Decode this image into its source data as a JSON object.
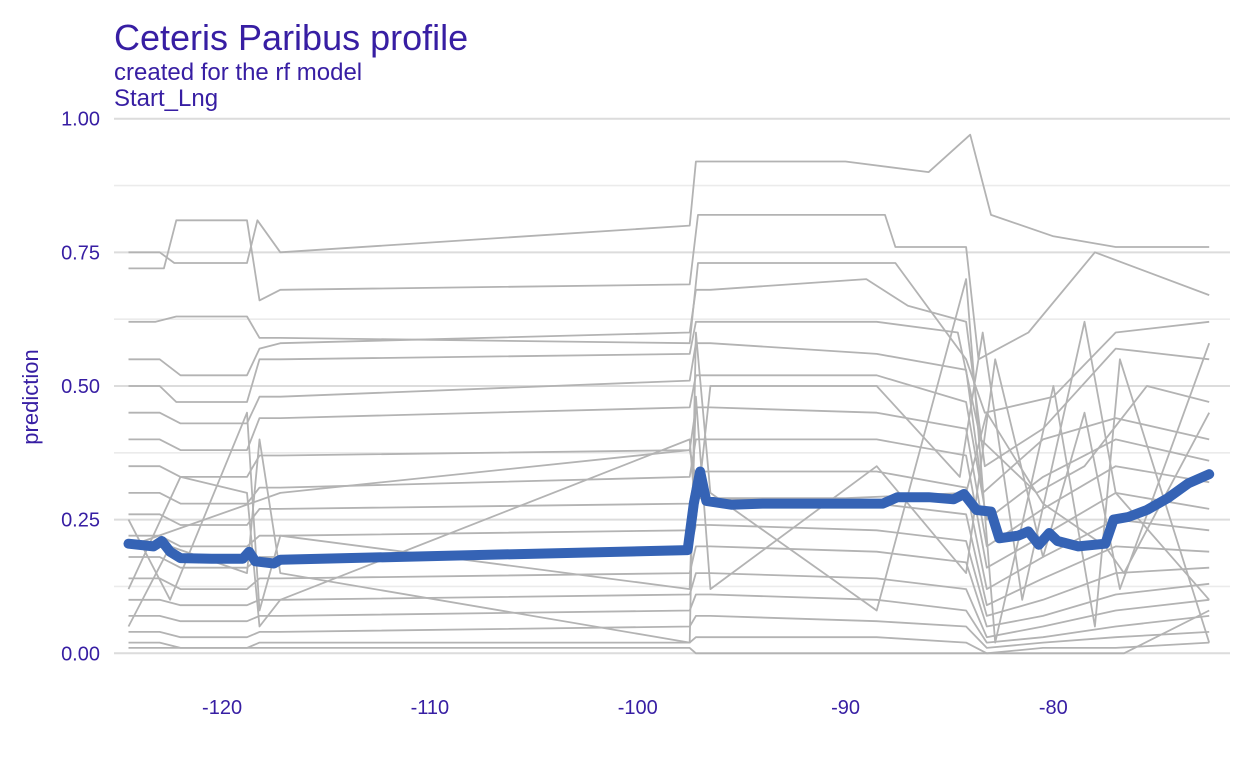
{
  "chart_data": {
    "type": "line",
    "title": "Ceteris Paribus profile",
    "subtitle": "created for the rf model",
    "facet_label": "Start_Lng",
    "xlabel": "",
    "ylabel": "prediction",
    "xlim": [
      -125.2,
      -71.5
    ],
    "ylim": [
      -0.05,
      1.02
    ],
    "x_ticks": [
      -120,
      -110,
      -100,
      -90,
      -80
    ],
    "y_ticks": [
      0.0,
      0.25,
      0.5,
      0.75,
      1.0
    ],
    "y_tick_labels": [
      "0.00",
      "0.25",
      "0.50",
      "0.75",
      "1.00"
    ],
    "grid": true,
    "legend": "none",
    "colors": {
      "profiles": "#b3b3b3",
      "average": "#3563b5",
      "text": "#371ea3"
    },
    "series": [
      {
        "x": [
          -124.5,
          -123,
          -122.3,
          -121,
          -118.8,
          -118.3,
          -117.2,
          -97.5,
          -97.2,
          -96.5,
          -90,
          -86,
          -84,
          -83,
          -80,
          -77,
          -72.5
        ],
        "values": [
          0.75,
          0.75,
          0.73,
          0.73,
          0.73,
          0.81,
          0.75,
          0.8,
          0.92,
          0.92,
          0.92,
          0.9,
          0.97,
          0.82,
          0.78,
          0.76,
          0.76
        ]
      },
      {
        "x": [
          -124.5,
          -122.8,
          -122.2,
          -120,
          -118.8,
          -118.2,
          -117.2,
          -97.5,
          -97.1,
          -96.5,
          -88.1,
          -87.6,
          -84.2,
          -83.6,
          -81.2,
          -78,
          -72.5
        ],
        "values": [
          0.72,
          0.72,
          0.81,
          0.81,
          0.81,
          0.66,
          0.68,
          0.69,
          0.82,
          0.82,
          0.82,
          0.76,
          0.76,
          0.55,
          0.6,
          0.75,
          0.67
        ]
      },
      {
        "x": [
          -124.5,
          -123.2,
          -122.2,
          -118.8,
          -118.2,
          -117.2,
          -97.5,
          -97.1,
          -96.3,
          -88.5,
          -87.6,
          -84.2,
          -83.3,
          -80,
          -77,
          -72.5
        ],
        "values": [
          0.62,
          0.62,
          0.63,
          0.63,
          0.59,
          0.59,
          0.58,
          0.73,
          0.73,
          0.73,
          0.73,
          0.55,
          0.45,
          0.48,
          0.6,
          0.62
        ]
      },
      {
        "x": [
          -124.5,
          -123,
          -122,
          -118.8,
          -118.2,
          -117.2,
          -97.5,
          -97.2,
          -96.5,
          -89,
          -87,
          -84.2,
          -83.3,
          -80.5,
          -77,
          -72.5
        ],
        "values": [
          0.55,
          0.55,
          0.52,
          0.52,
          0.57,
          0.58,
          0.6,
          0.68,
          0.68,
          0.7,
          0.65,
          0.62,
          0.35,
          0.42,
          0.57,
          0.55
        ]
      },
      {
        "x": [
          -124.5,
          -123,
          -122.2,
          -118.8,
          -118.2,
          -117.2,
          -97.5,
          -97.2,
          -96.5,
          -88.5,
          -84.6,
          -83.5,
          -80.8,
          -78.5,
          -75.5,
          -72.5
        ],
        "values": [
          0.5,
          0.5,
          0.47,
          0.47,
          0.55,
          0.55,
          0.56,
          0.62,
          0.62,
          0.62,
          0.6,
          0.4,
          0.3,
          0.35,
          0.5,
          0.47
        ]
      },
      {
        "x": [
          -124.5,
          -123,
          -122,
          -118.8,
          -118.2,
          -117.2,
          -97.5,
          -97.2,
          -96.5,
          -88.5,
          -84.2,
          -83.4,
          -80.5,
          -77,
          -72.5
        ],
        "values": [
          0.45,
          0.45,
          0.43,
          0.43,
          0.48,
          0.48,
          0.51,
          0.58,
          0.58,
          0.56,
          0.53,
          0.3,
          0.4,
          0.44,
          0.4
        ]
      },
      {
        "x": [
          -124.5,
          -123,
          -122,
          -118.8,
          -118.2,
          -117.2,
          -97.5,
          -97.2,
          -96.5,
          -88.5,
          -84.2,
          -83.2,
          -80.5,
          -77,
          -72.5
        ],
        "values": [
          0.4,
          0.4,
          0.38,
          0.38,
          0.44,
          0.44,
          0.46,
          0.52,
          0.52,
          0.52,
          0.47,
          0.25,
          0.33,
          0.4,
          0.36
        ]
      },
      {
        "x": [
          -124.5,
          -123,
          -122,
          -118.8,
          -118.2,
          -117.2,
          -97.5,
          -97.2,
          -96.5,
          -88.5,
          -84.2,
          -83.2,
          -80.5,
          -77,
          -72.5
        ],
        "values": [
          0.35,
          0.35,
          0.33,
          0.33,
          0.37,
          0.37,
          0.38,
          0.46,
          0.46,
          0.45,
          0.42,
          0.2,
          0.27,
          0.35,
          0.32
        ]
      },
      {
        "x": [
          -124.5,
          -123,
          -122,
          -118.8,
          -118.2,
          -117.2,
          -97.5,
          -97.2,
          -96.5,
          -88.5,
          -84.2,
          -83.2,
          -80.5,
          -77,
          -72.5
        ],
        "values": [
          0.3,
          0.3,
          0.28,
          0.28,
          0.31,
          0.31,
          0.33,
          0.4,
          0.4,
          0.4,
          0.37,
          0.16,
          0.22,
          0.3,
          0.27
        ]
      },
      {
        "x": [
          -124.5,
          -123,
          -122,
          -118.8,
          -118.2,
          -117.2,
          -97.5,
          -97.2,
          -96.5,
          -88.5,
          -84.2,
          -83.2,
          -80.5,
          -77,
          -72.5
        ],
        "values": [
          0.26,
          0.26,
          0.24,
          0.24,
          0.27,
          0.27,
          0.28,
          0.34,
          0.34,
          0.34,
          0.31,
          0.12,
          0.18,
          0.25,
          0.23
        ]
      },
      {
        "x": [
          -124.5,
          -123,
          -122,
          -118.8,
          -118.2,
          -117.2,
          -97.5,
          -97.2,
          -96.5,
          -88.5,
          -84.2,
          -83.2,
          -80.5,
          -77,
          -72.5
        ],
        "values": [
          0.22,
          0.22,
          0.2,
          0.2,
          0.22,
          0.22,
          0.23,
          0.29,
          0.29,
          0.28,
          0.26,
          0.09,
          0.14,
          0.2,
          0.19
        ]
      },
      {
        "x": [
          -124.5,
          -123,
          -122,
          -118.8,
          -118.2,
          -117.2,
          -97.5,
          -97.2,
          -96.5,
          -88.5,
          -84.2,
          -83.2,
          -80.5,
          -77,
          -72.5
        ],
        "values": [
          0.18,
          0.18,
          0.16,
          0.16,
          0.18,
          0.18,
          0.19,
          0.24,
          0.24,
          0.23,
          0.21,
          0.07,
          0.1,
          0.15,
          0.16
        ]
      },
      {
        "x": [
          -124.5,
          -123,
          -122,
          -118.8,
          -118.2,
          -117.2,
          -97.5,
          -97.2,
          -96.5,
          -88.5,
          -84.2,
          -83.2,
          -80.5,
          -77,
          -72.5
        ],
        "values": [
          0.14,
          0.14,
          0.12,
          0.12,
          0.14,
          0.14,
          0.15,
          0.2,
          0.2,
          0.19,
          0.17,
          0.05,
          0.07,
          0.11,
          0.13
        ]
      },
      {
        "x": [
          -124.5,
          -123,
          -122,
          -118.8,
          -118.2,
          -117.2,
          -97.5,
          -97.2,
          -96.5,
          -88.5,
          -84.2,
          -83.2,
          -80.5,
          -77,
          -72.5
        ],
        "values": [
          0.1,
          0.1,
          0.09,
          0.09,
          0.1,
          0.1,
          0.11,
          0.15,
          0.15,
          0.14,
          0.12,
          0.03,
          0.05,
          0.08,
          0.1
        ]
      },
      {
        "x": [
          -124.5,
          -123,
          -122,
          -118.8,
          -118.2,
          -117.2,
          -97.5,
          -97.2,
          -96.5,
          -88.5,
          -84.2,
          -83.2,
          -80.5,
          -77,
          -72.5
        ],
        "values": [
          0.07,
          0.07,
          0.06,
          0.06,
          0.07,
          0.07,
          0.08,
          0.11,
          0.11,
          0.1,
          0.08,
          0.02,
          0.03,
          0.05,
          0.07
        ]
      },
      {
        "x": [
          -124.5,
          -123,
          -122,
          -118.8,
          -118.2,
          -117.2,
          -97.5,
          -97.2,
          -96.5,
          -88.5,
          -84.2,
          -83.2,
          -80.5,
          -77,
          -72.5
        ],
        "values": [
          0.04,
          0.04,
          0.03,
          0.03,
          0.04,
          0.04,
          0.05,
          0.07,
          0.07,
          0.06,
          0.05,
          0.01,
          0.02,
          0.03,
          0.04
        ]
      },
      {
        "x": [
          -124.5,
          -123,
          -122,
          -118.8,
          -118.2,
          -117.2,
          -97.5,
          -97.2,
          -96.5,
          -88.5,
          -84.2,
          -83.2,
          -80.5,
          -77,
          -72.5
        ],
        "values": [
          0.02,
          0.02,
          0.01,
          0.01,
          0.02,
          0.02,
          0.02,
          0.03,
          0.03,
          0.03,
          0.02,
          0.0,
          0.01,
          0.01,
          0.02
        ]
      },
      {
        "x": [
          -124.5,
          -117.2,
          -97.5,
          -97.2,
          -90,
          -84.2,
          -83.2,
          -80.5,
          -77.5,
          -76.6,
          -72.5
        ],
        "values": [
          0.01,
          0.01,
          0.01,
          0.0,
          0.0,
          0.0,
          0.0,
          0.0,
          0.0,
          0.0,
          0.08
        ]
      },
      {
        "x": [
          -124.5,
          -117.2,
          -97.5,
          -97,
          -90,
          -84.2,
          -83.2,
          -80.5,
          -77.5,
          -76.6,
          -72.5
        ],
        "values": [
          0.2,
          0.3,
          0.38,
          0.29,
          0.29,
          0.3,
          0.45,
          0.28,
          0.2,
          0.15,
          0.45
        ]
      },
      {
        "x": [
          -124.5,
          -122,
          -118.8,
          -118.2,
          -117.2,
          -97.5,
          -97.2,
          -96.5,
          -88.5,
          -84.5,
          -83.4,
          -81.5,
          -78.5,
          -77,
          -72.5
        ],
        "values": [
          0.12,
          0.33,
          0.3,
          0.05,
          0.1,
          0.4,
          0.25,
          0.5,
          0.5,
          0.33,
          0.6,
          0.1,
          0.62,
          0.3,
          0.1
        ]
      },
      {
        "x": [
          -124.5,
          -122.5,
          -118.8,
          -118.2,
          -117.2,
          -97.5,
          -97.2,
          -96.5,
          -88.5,
          -84.2,
          -82.8,
          -80,
          -78,
          -76.8,
          -72.5
        ],
        "values": [
          0.05,
          0.2,
          0.15,
          0.4,
          0.15,
          0.02,
          0.6,
          0.3,
          0.08,
          0.7,
          0.02,
          0.5,
          0.05,
          0.55,
          0.02
        ]
      },
      {
        "x": [
          -124.5,
          -122.5,
          -118.8,
          -118.2,
          -117.2,
          -97.5,
          -97.2,
          -96.5,
          -88.5,
          -84.2,
          -82.8,
          -80.5,
          -78.5,
          -76.8,
          -72.5
        ],
        "values": [
          0.25,
          0.1,
          0.45,
          0.08,
          0.22,
          0.12,
          0.48,
          0.12,
          0.35,
          0.15,
          0.55,
          0.18,
          0.45,
          0.12,
          0.58
        ]
      }
    ],
    "average": {
      "x": [
        -124.5,
        -123.3,
        -122.9,
        -122.5,
        -122,
        -120.5,
        -119,
        -118.7,
        -118.4,
        -117.5,
        -117.2,
        -97.6,
        -97.3,
        -97,
        -96.7,
        -95.5,
        -94,
        -90,
        -88.2,
        -87.5,
        -86,
        -84.8,
        -84.3,
        -83.7,
        -83,
        -82.6,
        -81.7,
        -81.2,
        -80.7,
        -80.2,
        -79.8,
        -78.8,
        -77.5,
        -77.1,
        -76.4,
        -75.5,
        -74.5,
        -73.5,
        -72.5
      ],
      "values": [
        0.205,
        0.2,
        0.21,
        0.19,
        0.178,
        0.177,
        0.177,
        0.19,
        0.172,
        0.168,
        0.175,
        0.193,
        0.28,
        0.34,
        0.285,
        0.278,
        0.28,
        0.28,
        0.28,
        0.292,
        0.292,
        0.288,
        0.298,
        0.268,
        0.265,
        0.215,
        0.22,
        0.228,
        0.203,
        0.225,
        0.21,
        0.2,
        0.205,
        0.25,
        0.255,
        0.268,
        0.29,
        0.318,
        0.335
      ]
    }
  }
}
